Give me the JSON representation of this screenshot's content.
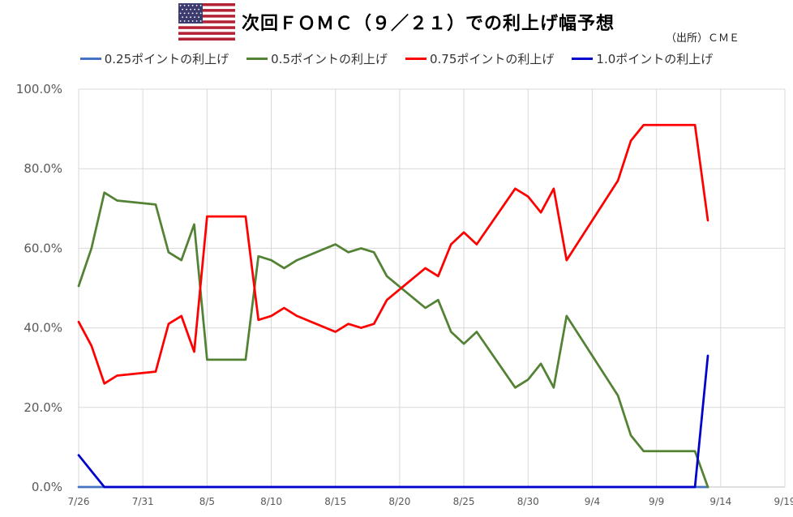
{
  "title": "次回ＦＯＭＣ（９／２１）での利上げ幅予想",
  "source": "（出所）ＣＭＥ",
  "flag": {
    "name": "us-flag-icon",
    "stripe_red": "#B22234",
    "canton_blue": "#3C3B6E"
  },
  "chart_data": {
    "type": "line",
    "title": "次回ＦＯＭＣ（９／２１）での利上げ幅予想",
    "xlabel": "",
    "ylabel": "",
    "ylim": [
      0,
      100
    ],
    "y_ticks": [
      "0.0%",
      "20.0%",
      "40.0%",
      "60.0%",
      "80.0%",
      "100.0%"
    ],
    "x_range": [
      "2022-07-26",
      "2022-09-19"
    ],
    "x_ticks": [
      {
        "date": "2022-07-26",
        "label": "7/26"
      },
      {
        "date": "2022-07-31",
        "label": "7/31"
      },
      {
        "date": "2022-08-05",
        "label": "8/5"
      },
      {
        "date": "2022-08-10",
        "label": "8/10"
      },
      {
        "date": "2022-08-15",
        "label": "8/15"
      },
      {
        "date": "2022-08-20",
        "label": "8/20"
      },
      {
        "date": "2022-08-25",
        "label": "8/25"
      },
      {
        "date": "2022-08-30",
        "label": "8/30"
      },
      {
        "date": "2022-09-04",
        "label": "9/4"
      },
      {
        "date": "2022-09-09",
        "label": "9/9"
      },
      {
        "date": "2022-09-14",
        "label": "9/14"
      },
      {
        "date": "2022-09-19",
        "label": "9/19"
      }
    ],
    "grid": true,
    "legend_position": "top",
    "series": [
      {
        "name": "0.25ポイントの利上げ",
        "color": "#4472C4",
        "points": [
          [
            "2022-07-26",
            0
          ],
          [
            "2022-07-27",
            0
          ],
          [
            "2022-07-28",
            0
          ],
          [
            "2022-07-29",
            0
          ],
          [
            "2022-08-01",
            0
          ],
          [
            "2022-08-02",
            0
          ],
          [
            "2022-08-03",
            0
          ],
          [
            "2022-08-04",
            0
          ],
          [
            "2022-08-05",
            0
          ],
          [
            "2022-08-08",
            0
          ],
          [
            "2022-08-09",
            0
          ],
          [
            "2022-08-10",
            0
          ],
          [
            "2022-08-11",
            0
          ],
          [
            "2022-08-12",
            0
          ],
          [
            "2022-08-15",
            0
          ],
          [
            "2022-08-16",
            0
          ],
          [
            "2022-08-17",
            0
          ],
          [
            "2022-08-18",
            0
          ],
          [
            "2022-08-19",
            0
          ],
          [
            "2022-08-22",
            0
          ],
          [
            "2022-08-23",
            0
          ],
          [
            "2022-08-24",
            0
          ],
          [
            "2022-08-25",
            0
          ],
          [
            "2022-08-26",
            0
          ],
          [
            "2022-08-29",
            0
          ],
          [
            "2022-08-30",
            0
          ],
          [
            "2022-08-31",
            0
          ],
          [
            "2022-09-01",
            0
          ],
          [
            "2022-09-02",
            0
          ],
          [
            "2022-09-06",
            0
          ],
          [
            "2022-09-07",
            0
          ],
          [
            "2022-09-08",
            0
          ],
          [
            "2022-09-09",
            0
          ],
          [
            "2022-09-12",
            0
          ],
          [
            "2022-09-13",
            0
          ]
        ]
      },
      {
        "name": "0.5ポイントの利上げ",
        "color": "#548235",
        "points": [
          [
            "2022-07-26",
            50.5
          ],
          [
            "2022-07-27",
            60
          ],
          [
            "2022-07-28",
            74
          ],
          [
            "2022-07-29",
            72
          ],
          [
            "2022-08-01",
            71
          ],
          [
            "2022-08-02",
            59
          ],
          [
            "2022-08-03",
            57
          ],
          [
            "2022-08-04",
            66
          ],
          [
            "2022-08-05",
            32
          ],
          [
            "2022-08-08",
            32
          ],
          [
            "2022-08-09",
            58
          ],
          [
            "2022-08-10",
            57
          ],
          [
            "2022-08-11",
            55
          ],
          [
            "2022-08-12",
            57
          ],
          [
            "2022-08-15",
            61
          ],
          [
            "2022-08-16",
            59
          ],
          [
            "2022-08-17",
            60
          ],
          [
            "2022-08-18",
            59
          ],
          [
            "2022-08-19",
            53
          ],
          [
            "2022-08-22",
            45
          ],
          [
            "2022-08-23",
            47
          ],
          [
            "2022-08-24",
            39
          ],
          [
            "2022-08-25",
            36
          ],
          [
            "2022-08-26",
            39
          ],
          [
            "2022-08-29",
            25
          ],
          [
            "2022-08-30",
            27
          ],
          [
            "2022-08-31",
            31
          ],
          [
            "2022-09-01",
            25
          ],
          [
            "2022-09-02",
            43
          ],
          [
            "2022-09-06",
            23
          ],
          [
            "2022-09-07",
            13
          ],
          [
            "2022-09-08",
            9
          ],
          [
            "2022-09-09",
            9
          ],
          [
            "2022-09-12",
            9
          ],
          [
            "2022-09-13",
            0
          ]
        ]
      },
      {
        "name": "0.75ポイントの利上げ",
        "color": "#FF0000",
        "points": [
          [
            "2022-07-26",
            41.5
          ],
          [
            "2022-07-27",
            35.5
          ],
          [
            "2022-07-28",
            26
          ],
          [
            "2022-07-29",
            28
          ],
          [
            "2022-08-01",
            29
          ],
          [
            "2022-08-02",
            41
          ],
          [
            "2022-08-03",
            43
          ],
          [
            "2022-08-04",
            34
          ],
          [
            "2022-08-05",
            68
          ],
          [
            "2022-08-08",
            68
          ],
          [
            "2022-08-09",
            42
          ],
          [
            "2022-08-10",
            43
          ],
          [
            "2022-08-11",
            45
          ],
          [
            "2022-08-12",
            43
          ],
          [
            "2022-08-15",
            39
          ],
          [
            "2022-08-16",
            41
          ],
          [
            "2022-08-17",
            40
          ],
          [
            "2022-08-18",
            41
          ],
          [
            "2022-08-19",
            47
          ],
          [
            "2022-08-22",
            55
          ],
          [
            "2022-08-23",
            53
          ],
          [
            "2022-08-24",
            61
          ],
          [
            "2022-08-25",
            64
          ],
          [
            "2022-08-26",
            61
          ],
          [
            "2022-08-29",
            75
          ],
          [
            "2022-08-30",
            73
          ],
          [
            "2022-08-31",
            69
          ],
          [
            "2022-09-01",
            75
          ],
          [
            "2022-09-02",
            57
          ],
          [
            "2022-09-06",
            77
          ],
          [
            "2022-09-07",
            87
          ],
          [
            "2022-09-08",
            91
          ],
          [
            "2022-09-09",
            91
          ],
          [
            "2022-09-12",
            91
          ],
          [
            "2022-09-13",
            67
          ]
        ]
      },
      {
        "name": "1.0ポイントの利上げ",
        "color": "#0000CC",
        "points": [
          [
            "2022-07-26",
            8
          ],
          [
            "2022-07-27",
            4
          ],
          [
            "2022-07-28",
            0
          ],
          [
            "2022-07-29",
            0
          ],
          [
            "2022-08-01",
            0
          ],
          [
            "2022-08-02",
            0
          ],
          [
            "2022-08-03",
            0
          ],
          [
            "2022-08-04",
            0
          ],
          [
            "2022-08-05",
            0
          ],
          [
            "2022-08-08",
            0
          ],
          [
            "2022-08-09",
            0
          ],
          [
            "2022-08-10",
            0
          ],
          [
            "2022-08-11",
            0
          ],
          [
            "2022-08-12",
            0
          ],
          [
            "2022-08-15",
            0
          ],
          [
            "2022-08-16",
            0
          ],
          [
            "2022-08-17",
            0
          ],
          [
            "2022-08-18",
            0
          ],
          [
            "2022-08-19",
            0
          ],
          [
            "2022-08-22",
            0
          ],
          [
            "2022-08-23",
            0
          ],
          [
            "2022-08-24",
            0
          ],
          [
            "2022-08-25",
            0
          ],
          [
            "2022-08-26",
            0
          ],
          [
            "2022-08-29",
            0
          ],
          [
            "2022-08-30",
            0
          ],
          [
            "2022-08-31",
            0
          ],
          [
            "2022-09-01",
            0
          ],
          [
            "2022-09-02",
            0
          ],
          [
            "2022-09-06",
            0
          ],
          [
            "2022-09-07",
            0
          ],
          [
            "2022-09-08",
            0
          ],
          [
            "2022-09-09",
            0
          ],
          [
            "2022-09-12",
            0
          ],
          [
            "2022-09-13",
            33
          ]
        ]
      }
    ]
  }
}
